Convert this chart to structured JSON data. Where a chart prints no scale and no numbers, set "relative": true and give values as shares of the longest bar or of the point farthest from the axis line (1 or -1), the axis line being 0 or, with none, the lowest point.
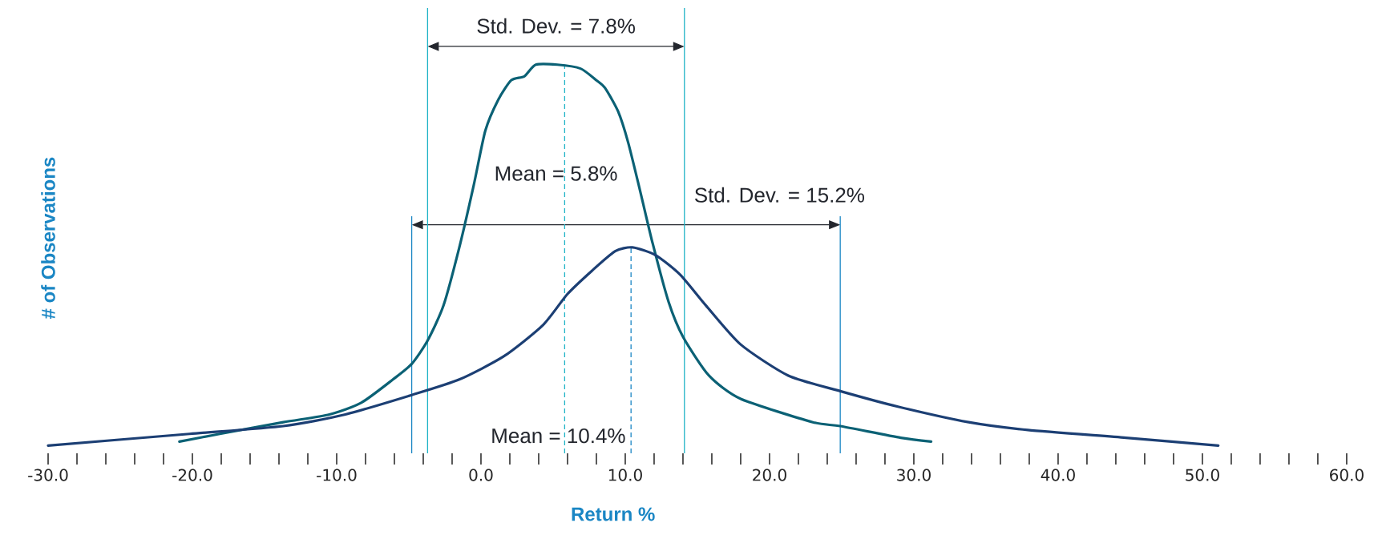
{
  "chart_data": {
    "type": "line",
    "relative": true,
    "xlabel": "Return %",
    "ylabel": "# of Observations",
    "xlim": [
      -30,
      60
    ],
    "xticks": [
      {
        "value": -30,
        "label": "-30.0"
      },
      {
        "value": -28,
        "label": null
      },
      {
        "value": -26,
        "label": null
      },
      {
        "value": -24,
        "label": null
      },
      {
        "value": -22,
        "label": null
      },
      {
        "value": -20,
        "label": "-20.0"
      },
      {
        "value": -18,
        "label": null
      },
      {
        "value": -16,
        "label": null
      },
      {
        "value": -14,
        "label": null
      },
      {
        "value": -12,
        "label": null
      },
      {
        "value": -10,
        "label": "-10.0"
      },
      {
        "value": -8,
        "label": null
      },
      {
        "value": -6,
        "label": null
      },
      {
        "value": -4,
        "label": null
      },
      {
        "value": -2,
        "label": null
      },
      {
        "value": 0,
        "label": "0.0"
      },
      {
        "value": 2,
        "label": null
      },
      {
        "value": 4,
        "label": null
      },
      {
        "value": 6,
        "label": null
      },
      {
        "value": 8,
        "label": null
      },
      {
        "value": 10,
        "label": "10.0"
      },
      {
        "value": 12,
        "label": null
      },
      {
        "value": 14,
        "label": null
      },
      {
        "value": 16,
        "label": null
      },
      {
        "value": 18,
        "label": null
      },
      {
        "value": 20,
        "label": "20.0"
      },
      {
        "value": 22,
        "label": null
      },
      {
        "value": 24,
        "label": null
      },
      {
        "value": 26,
        "label": null
      },
      {
        "value": 28,
        "label": null
      },
      {
        "value": 30,
        "label": "30.0"
      },
      {
        "value": 32,
        "label": null
      },
      {
        "value": 34,
        "label": null
      },
      {
        "value": 36,
        "label": null
      },
      {
        "value": 38,
        "label": null
      },
      {
        "value": 40,
        "label": "40.0"
      },
      {
        "value": 42,
        "label": null
      },
      {
        "value": 44,
        "label": null
      },
      {
        "value": 46,
        "label": null
      },
      {
        "value": 48,
        "label": null
      },
      {
        "value": 50,
        "label": "50.0"
      },
      {
        "value": 52,
        "label": null
      },
      {
        "value": 54,
        "label": null
      },
      {
        "value": 56,
        "label": null
      },
      {
        "value": 58,
        "label": null
      },
      {
        "value": 60,
        "label": "60.0"
      }
    ],
    "series": [
      {
        "color": "#0b6175",
        "x": [
          -20.9,
          -18.1,
          -13.7,
          -10.5,
          -8.3,
          -6.1,
          -4.8,
          -3.7,
          -2.6,
          -1.5,
          -0.5,
          0.3,
          1.2,
          2.1,
          3.0,
          3.8,
          5.3,
          6.9,
          8.0,
          8.6,
          9.5,
          10.2,
          11.0,
          11.9,
          13.0,
          14.0,
          15.8,
          18.0,
          23.0,
          24.9,
          29.1,
          31.2
        ],
        "values": [
          0.03,
          0.05,
          0.08,
          0.1,
          0.13,
          0.19,
          0.23,
          0.29,
          0.38,
          0.53,
          0.69,
          0.83,
          0.91,
          0.96,
          0.97,
          1.0,
          1.0,
          0.99,
          0.96,
          0.94,
          0.88,
          0.8,
          0.68,
          0.54,
          0.39,
          0.3,
          0.2,
          0.14,
          0.08,
          0.07,
          0.04,
          0.03
        ]
      },
      {
        "color": "#1c3f74",
        "x": [
          -30.0,
          -20.2,
          -13.7,
          -9.4,
          -4.8,
          -1.5,
          1.6,
          4.3,
          6.0,
          7.7,
          9.3,
          10.5,
          12.1,
          13.8,
          15.6,
          18.0,
          21.3,
          24.9,
          28.9,
          33.8,
          37.9,
          44.7,
          51.1
        ],
        "values": [
          0.02,
          0.05,
          0.07,
          0.1,
          0.15,
          0.19,
          0.25,
          0.33,
          0.41,
          0.47,
          0.52,
          0.53,
          0.51,
          0.46,
          0.38,
          0.28,
          0.2,
          0.16,
          0.12,
          0.08,
          0.06,
          0.04,
          0.02
        ]
      }
    ],
    "ref_lines": [
      {
        "axis": "x",
        "value": 5.8,
        "label": "Mean = 5.8%",
        "color": "#1fb3c6",
        "line_style": "dashed"
      },
      {
        "axis": "x",
        "value": 10.4,
        "label": "Mean = 10.4%",
        "color": "#1a86c4",
        "line_style": "dashed"
      },
      {
        "axis": "x",
        "value": -3.7,
        "color": "#1fb3c6"
      },
      {
        "axis": "x",
        "value": 14.1,
        "color": "#1fb3c6"
      },
      {
        "axis": "x",
        "value": -4.8,
        "color": "#1a86c4"
      },
      {
        "axis": "x",
        "value": 24.9,
        "color": "#1a86c4"
      }
    ],
    "annotations": [
      "Std. Dev. = 7.8%",
      "Std. Dev. = 15.2%"
    ]
  }
}
